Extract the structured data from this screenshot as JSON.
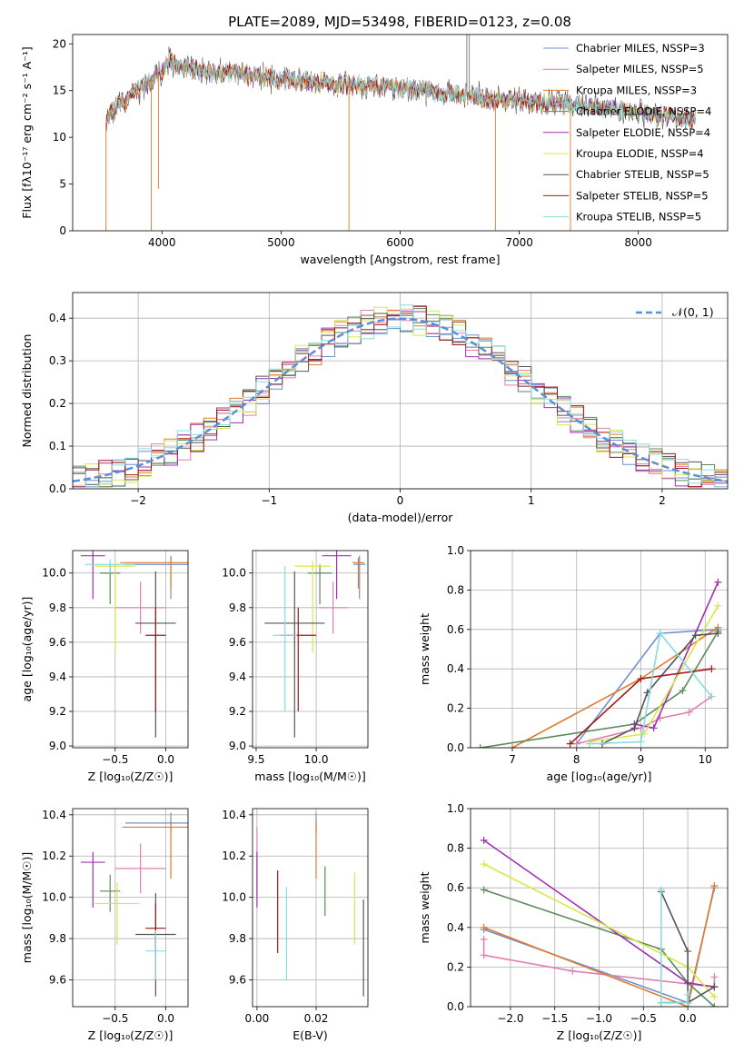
{
  "figure": {
    "title": "PLATE=2089, MJD=53498, FIBERID=0123, z=0.08"
  },
  "colors": [
    "#6f90d0",
    "#e07fb0",
    "#e07a2e",
    "#5a8a5a",
    "#a030b0",
    "#d8e848",
    "#555555",
    "#a01818",
    "#88dbe0"
  ],
  "chart_data": [
    {
      "id": "spectrum",
      "type": "line",
      "xlabel": "wavelength [Angstrom, rest frame]",
      "ylabel": "Flux [fλ10⁻¹⁷ erg cm⁻² s⁻¹ A⁻¹]",
      "xlim": [
        3250,
        8750
      ],
      "ylim": [
        0,
        21
      ],
      "xticks": [
        4000,
        5000,
        6000,
        7000,
        8000
      ],
      "yticks": [
        0,
        5,
        10,
        15,
        20
      ],
      "grid": false,
      "legend_position": "upper right",
      "series": [
        {
          "name": "Chabrier MILES, NSSP=3",
          "color": "#6f90d0"
        },
        {
          "name": "Salpeter MILES, NSSP=5",
          "color": "#e07fb0"
        },
        {
          "name": "Kroupa MILES, NSSP=3",
          "color": "#e07a2e"
        },
        {
          "name": "Chabrier ELODIE, NSSP=4",
          "color": "#5a8a5a"
        },
        {
          "name": "Salpeter ELODIE, NSSP=4",
          "color": "#a030b0"
        },
        {
          "name": "Kroupa ELODIE, NSSP=4",
          "color": "#d8e848"
        },
        {
          "name": "Chabrier STELIB, NSSP=5",
          "color": "#555555"
        },
        {
          "name": "Salpeter STELIB, NSSP=5",
          "color": "#a01818"
        },
        {
          "name": "Kroupa STELIB, NSSP=5",
          "color": "#88dbe0"
        }
      ],
      "continuum": {
        "x": [
          3550,
          3650,
          3750,
          3850,
          3950,
          4050,
          4200,
          4400,
          4600,
          4800,
          5000,
          5200,
          5400,
          5600,
          5800,
          6000,
          6200,
          6400,
          6600,
          6800,
          7000,
          7200,
          7400,
          7600,
          7800,
          8000,
          8200,
          8400,
          8500
        ],
        "y": [
          12.5,
          13.5,
          14.5,
          15.5,
          16.5,
          18.0,
          17.5,
          17.0,
          16.8,
          16.5,
          16.2,
          16.0,
          15.8,
          15.6,
          15.4,
          15.2,
          15.0,
          14.8,
          14.5,
          14.0,
          14.0,
          13.6,
          13.5,
          13.3,
          13.0,
          12.6,
          12.4,
          12.0,
          11.8
        ]
      },
      "absorption_features": [
        {
          "x": 3530,
          "y": 0
        },
        {
          "x": 3910,
          "y": 0
        },
        {
          "x": 3970,
          "y": 4.5
        },
        {
          "x": 5570,
          "y": 0
        },
        {
          "x": 6800,
          "y": 0
        },
        {
          "x": 7430,
          "y": 0
        }
      ],
      "emission_features": [
        {
          "x": 6560,
          "y": 21
        },
        {
          "x": 6580,
          "y": 21
        }
      ]
    },
    {
      "id": "residuals",
      "type": "bar",
      "xlabel": "(data-model)/error",
      "ylabel": "Normed distribution",
      "xlim": [
        -2.5,
        2.5
      ],
      "ylim": [
        0,
        0.46
      ],
      "xticks": [
        -2,
        -1,
        0,
        1,
        2
      ],
      "yticks": [
        0.0,
        0.1,
        0.2,
        0.3,
        0.4
      ],
      "grid": true,
      "legend_position": "upper right",
      "legend": "𝒩(0, 1)",
      "bin_width": 0.1,
      "bin_start": -2.5,
      "gaussian_color": "#5b8fd6"
    },
    {
      "id": "age-vs-Z",
      "type": "scatter",
      "xlabel": "Z [log₁₀(Z/Z☉)]",
      "ylabel": "age [log₁₀(age/yr)]",
      "xlim": [
        -0.92,
        0.22
      ],
      "ylim": [
        8.99,
        10.13
      ],
      "xticks": [
        -0.5,
        0.0
      ],
      "yticks": [
        9.0,
        9.2,
        9.4,
        9.6,
        9.8,
        10.0
      ],
      "grid": true,
      "points": [
        {
          "x": 0.05,
          "xerr": 0.45,
          "y": 10.05,
          "yerr_lo": 0.2,
          "yerr_hi": 0.05,
          "color": "#6f90d0"
        },
        {
          "x": -0.25,
          "xerr": 0.25,
          "y": 9.8,
          "yerr_lo": 0.15,
          "yerr_hi": 0.15,
          "color": "#e07fb0"
        },
        {
          "x": 0.05,
          "xerr": 0.5,
          "y": 10.06,
          "yerr_lo": 0.15,
          "yerr_hi": 0.03,
          "color": "#e07a2e"
        },
        {
          "x": -0.55,
          "xerr": 0.1,
          "y": 10.0,
          "yerr_lo": 0.18,
          "yerr_hi": 0.05,
          "color": "#5a8a5a"
        },
        {
          "x": -0.72,
          "xerr": 0.12,
          "y": 10.1,
          "yerr_lo": 0.25,
          "yerr_hi": 0.03,
          "color": "#a030b0"
        },
        {
          "x": -0.5,
          "xerr": 0.2,
          "y": 10.04,
          "yerr_lo": 0.5,
          "yerr_hi": 0.03,
          "color": "#d8e848"
        },
        {
          "x": -0.1,
          "xerr": 0.2,
          "y": 9.71,
          "yerr_lo": 0.66,
          "yerr_hi": 0.3,
          "color": "#555555"
        },
        {
          "x": -0.1,
          "xerr": 0.1,
          "y": 9.64,
          "yerr_lo": 0.44,
          "yerr_hi": 0.16,
          "color": "#a01818"
        },
        {
          "x": -0.55,
          "xerr": 0.25,
          "y": 10.05,
          "yerr_lo": 0.05,
          "yerr_hi": 0.03,
          "color": "#88dbe0"
        }
      ]
    },
    {
      "id": "age-vs-mass",
      "type": "scatter",
      "xlabel": "mass [log₁₀(M/M☉)]",
      "ylabel": "",
      "xlim": [
        9.47,
        10.43
      ],
      "ylim": [
        8.99,
        10.13
      ],
      "xticks": [
        9.5,
        10.0
      ],
      "yticks": [
        9.0,
        9.2,
        9.4,
        9.6,
        9.8,
        10.0
      ],
      "grid": true,
      "points": [
        {
          "x": 10.36,
          "xerr": 0.05,
          "y": 10.05,
          "yerr_lo": 0.2,
          "yerr_hi": 0.05,
          "color": "#6f90d0"
        },
        {
          "x": 10.14,
          "xerr": 0.12,
          "y": 9.8,
          "yerr_lo": 0.15,
          "yerr_hi": 0.15,
          "color": "#e07fb0"
        },
        {
          "x": 10.35,
          "xerr": 0.05,
          "y": 10.06,
          "yerr_lo": 0.15,
          "yerr_hi": 0.03,
          "color": "#e07a2e"
        },
        {
          "x": 10.03,
          "xerr": 0.1,
          "y": 10.0,
          "yerr_lo": 0.18,
          "yerr_hi": 0.05,
          "color": "#5a8a5a"
        },
        {
          "x": 10.17,
          "xerr": 0.12,
          "y": 10.1,
          "yerr_lo": 0.25,
          "yerr_hi": 0.03,
          "color": "#a030b0"
        },
        {
          "x": 9.97,
          "xerr": 0.15,
          "y": 10.04,
          "yerr_lo": 0.5,
          "yerr_hi": 0.03,
          "color": "#d8e848"
        },
        {
          "x": 9.82,
          "xerr": 0.25,
          "y": 9.71,
          "yerr_lo": 0.66,
          "yerr_hi": 0.3,
          "color": "#555555"
        },
        {
          "x": 9.85,
          "xerr": 0.15,
          "y": 9.64,
          "yerr_lo": 0.44,
          "yerr_hi": 0.16,
          "color": "#a01818"
        },
        {
          "x": 9.74,
          "xerr": 0.1,
          "y": 9.64,
          "yerr_lo": 0.44,
          "yerr_hi": 0.4,
          "color": "#88dbe0"
        }
      ]
    },
    {
      "id": "massweight-vs-age",
      "type": "line",
      "xlabel": "age [log₁₀(age/yr)]",
      "ylabel": "mass weight",
      "xlim": [
        6.35,
        10.35
      ],
      "ylim": [
        0,
        1.0
      ],
      "xticks": [
        7,
        8,
        9,
        10
      ],
      "yticks": [
        0.0,
        0.2,
        0.4,
        0.6,
        0.8,
        1.0
      ],
      "grid": true,
      "series": [
        {
          "color": "#6f90d0",
          "x": [
            8.0,
            9.3,
            10.2
          ],
          "y": [
            0.02,
            0.58,
            0.6
          ]
        },
        {
          "color": "#e07fb0",
          "x": [
            8.0,
            9.0,
            9.3,
            9.75,
            10.1
          ],
          "y": [
            0.02,
            0.1,
            0.15,
            0.18,
            0.26
          ]
        },
        {
          "color": "#e07a2e",
          "x": [
            7.0,
            9.0,
            10.2
          ],
          "y": [
            0.0,
            0.35,
            0.61
          ]
        },
        {
          "color": "#5a8a5a",
          "x": [
            6.5,
            8.9,
            9.65,
            10.2
          ],
          "y": [
            0.0,
            0.12,
            0.29,
            0.59
          ]
        },
        {
          "color": "#a030b0",
          "x": [
            8.9,
            9.2,
            10.2
          ],
          "y": [
            0.12,
            0.1,
            0.84
          ]
        },
        {
          "color": "#d8e848",
          "x": [
            8.2,
            9.05,
            10.2
          ],
          "y": [
            0.03,
            0.07,
            0.72
          ]
        },
        {
          "color": "#555555",
          "x": [
            8.4,
            8.9,
            9.1,
            9.85,
            10.2
          ],
          "y": [
            0.02,
            0.1,
            0.28,
            0.57,
            0.58
          ]
        },
        {
          "color": "#a01818",
          "x": [
            7.9,
            9.0,
            10.1
          ],
          "y": [
            0.02,
            0.35,
            0.4
          ]
        },
        {
          "color": "#88dbe0",
          "x": [
            8.2,
            9.0,
            9.3,
            10.1
          ],
          "y": [
            0.02,
            0.03,
            0.58,
            0.26
          ]
        }
      ]
    },
    {
      "id": "mass-vs-Z",
      "type": "scatter",
      "xlabel": "Z [log₁₀(Z/Z☉)]",
      "ylabel": "mass [log₁₀(M/M☉)]",
      "xlim": [
        -0.92,
        0.22
      ],
      "ylim": [
        9.47,
        10.43
      ],
      "xticks": [
        -0.5,
        0.0
      ],
      "yticks": [
        9.6,
        9.8,
        10.0,
        10.2,
        10.4
      ],
      "grid": true,
      "points": [
        {
          "x": 0.05,
          "xerr": 0.45,
          "y": 10.36,
          "yerr_lo": 0.05,
          "yerr_hi": 0.05,
          "color": "#6f90d0"
        },
        {
          "x": -0.25,
          "xerr": 0.25,
          "y": 10.14,
          "yerr_lo": 0.12,
          "yerr_hi": 0.12,
          "color": "#e07fb0"
        },
        {
          "x": 0.05,
          "xerr": 0.48,
          "y": 10.34,
          "yerr_lo": 0.25,
          "yerr_hi": 0.03,
          "color": "#e07a2e"
        },
        {
          "x": -0.55,
          "xerr": 0.1,
          "y": 10.03,
          "yerr_lo": 0.1,
          "yerr_hi": 0.08,
          "color": "#5a8a5a"
        },
        {
          "x": -0.72,
          "xerr": 0.12,
          "y": 10.17,
          "yerr_lo": 0.22,
          "yerr_hi": 0.05,
          "color": "#a030b0"
        },
        {
          "x": -0.48,
          "xerr": 0.22,
          "y": 9.97,
          "yerr_lo": 0.2,
          "yerr_hi": 0.1,
          "color": "#d8e848"
        },
        {
          "x": -0.1,
          "xerr": 0.2,
          "y": 9.82,
          "yerr_lo": 0.3,
          "yerr_hi": 0.2,
          "color": "#555555"
        },
        {
          "x": -0.1,
          "xerr": 0.1,
          "y": 9.85,
          "yerr_lo": 0.12,
          "yerr_hi": 0.12,
          "color": "#a01818"
        },
        {
          "x": -0.1,
          "xerr": 0.1,
          "y": 9.74,
          "yerr_lo": 0.14,
          "yerr_hi": 0.1,
          "color": "#88dbe0"
        }
      ]
    },
    {
      "id": "mass-vs-ebv",
      "type": "scatter",
      "xlabel": "E(B-V)",
      "ylabel": "",
      "xlim": [
        -0.0015,
        0.0375
      ],
      "ylim": [
        9.47,
        10.43
      ],
      "xticks": [
        0.0,
        0.02
      ],
      "yticks": [
        9.6,
        9.8,
        10.0,
        10.2,
        10.4
      ],
      "grid": true,
      "points": [
        {
          "x": 0.02,
          "y": 10.36,
          "yerr_lo": 0.05,
          "yerr_hi": 0.05,
          "color": "#6f90d0"
        },
        {
          "x": 0.0,
          "y": 10.14,
          "yerr_lo": 0.12,
          "yerr_hi": 0.2,
          "color": "#e07fb0"
        },
        {
          "x": 0.02,
          "y": 10.34,
          "yerr_lo": 0.25,
          "yerr_hi": 0.03,
          "color": "#e07a2e"
        },
        {
          "x": 0.023,
          "y": 10.03,
          "yerr_lo": 0.12,
          "yerr_hi": 0.12,
          "color": "#5a8a5a"
        },
        {
          "x": 0.0,
          "y": 10.17,
          "yerr_lo": 0.22,
          "yerr_hi": 0.05,
          "color": "#a030b0"
        },
        {
          "x": 0.033,
          "y": 9.97,
          "yerr_lo": 0.2,
          "yerr_hi": 0.15,
          "color": "#d8e848"
        },
        {
          "x": 0.036,
          "y": 9.82,
          "yerr_lo": 0.3,
          "yerr_hi": 0.17,
          "color": "#555555"
        },
        {
          "x": 0.007,
          "y": 9.85,
          "yerr_lo": 0.12,
          "yerr_hi": 0.28,
          "color": "#a01818"
        },
        {
          "x": 0.01,
          "y": 9.74,
          "yerr_lo": 0.14,
          "yerr_hi": 0.31,
          "color": "#88dbe0"
        }
      ]
    },
    {
      "id": "massweight-vs-Z",
      "type": "line",
      "xlabel": "Z [log₁₀(Z/Z☉)]",
      "ylabel": "mass weight",
      "xlim": [
        -2.45,
        0.45
      ],
      "ylim": [
        0,
        1.0
      ],
      "xticks": [
        -2.0,
        -1.5,
        -1.0,
        -0.5,
        0.0
      ],
      "yticks": [
        0.0,
        0.2,
        0.4,
        0.6,
        0.8,
        1.0
      ],
      "grid": true,
      "series": [
        {
          "color": "#6f90d0",
          "x": [
            -2.3,
            0.0,
            0.3
          ],
          "y": [
            0.39,
            0.02,
            0.6
          ]
        },
        {
          "color": "#e07fb0",
          "x": [
            -2.3,
            -2.3,
            -1.3,
            0.3,
            0.3
          ],
          "y": [
            0.34,
            0.26,
            0.18,
            0.1,
            0.15
          ]
        },
        {
          "color": "#e07a2e",
          "x": [
            -2.3,
            0.0,
            0.3
          ],
          "y": [
            0.4,
            0.0,
            0.61
          ]
        },
        {
          "color": "#5a8a5a",
          "x": [
            -2.3,
            -0.3,
            0.0,
            0.3
          ],
          "y": [
            0.59,
            0.29,
            0.12,
            0.0
          ]
        },
        {
          "color": "#a030b0",
          "x": [
            -2.3,
            0.0,
            0.3
          ],
          "y": [
            0.84,
            0.12,
            0.1
          ]
        },
        {
          "color": "#d8e848",
          "x": [
            -2.3,
            0.0,
            0.3
          ],
          "y": [
            0.72,
            0.2,
            0.05
          ]
        },
        {
          "color": "#555555",
          "x": [
            -0.3,
            0.0,
            0.0,
            0.3
          ],
          "y": [
            0.58,
            0.28,
            0.02,
            0.1
          ]
        },
        {
          "color": "#a01818",
          "x": [
            -0.3,
            0.0
          ],
          "y": [
            0.02,
            0.02
          ]
        },
        {
          "color": "#88dbe0",
          "x": [
            -0.3,
            -0.3,
            0.0,
            0.0
          ],
          "y": [
            0.59,
            0.02,
            0.02,
            0.06
          ]
        }
      ]
    }
  ]
}
